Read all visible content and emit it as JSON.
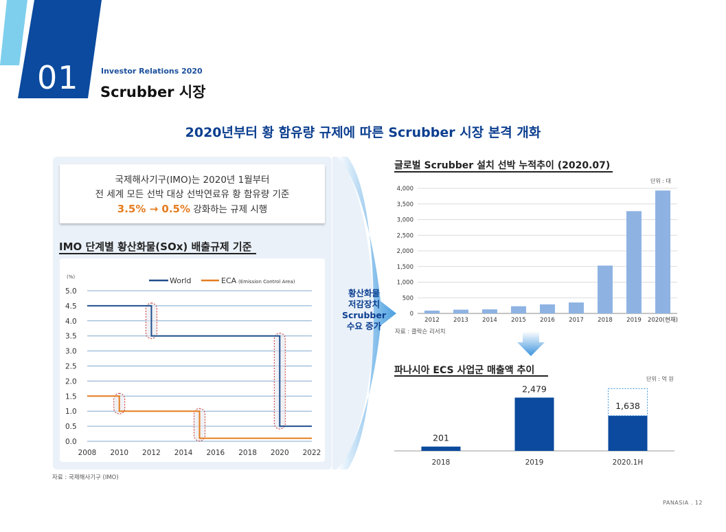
{
  "header": {
    "section_number": "01",
    "ir_label": "Investor Relations 2020",
    "section_title": "Scrubber 시장"
  },
  "headline": "2020년부터 황 함유량 규제에 따른 Scrubber 시장 본격 개화",
  "callout": {
    "line1": "국제해사기구(IMO)는 2020년 1월부터",
    "line2": "전 세계 모든 선박 대상 선박연료유 황 함유량 기준",
    "line3_highlight": "3.5% → 0.5%",
    "line3_rest": "강화하는 규제 시행"
  },
  "arrow_text": [
    "황산화물",
    "저감장치",
    "Scrubber",
    "수요 증가"
  ],
  "footer": "PANASIA . 12",
  "colors": {
    "navy": "#0b3e8f",
    "world": "#1f4e8c",
    "eca": "#e57c1f",
    "light_bar": "#8eb3e3",
    "panel": "#eaf1f9"
  },
  "chart_data": [
    {
      "type": "line",
      "title": "IMO 단계별 황산화물(SOx) 배출규제 기준",
      "unit": "(%)",
      "source": "자료 : 국제해사기구 (IMO)",
      "xlim": [
        2008,
        2022
      ],
      "ylim": [
        0,
        5
      ],
      "x_ticks": [
        "2008",
        "2010",
        "2012",
        "2014",
        "2016",
        "2018",
        "2020",
        "2022"
      ],
      "y_ticks": [
        "0.0",
        "0.5",
        "1.0",
        "1.5",
        "2.0",
        "2.5",
        "3.0",
        "3.5",
        "4.0",
        "4.5",
        "5.0"
      ],
      "legend_position": "top",
      "series": [
        {
          "name": "World",
          "color": "#1f4e8c",
          "points": [
            [
              2008,
              4.5
            ],
            [
              2012,
              4.5
            ],
            [
              2012,
              3.5
            ],
            [
              2020,
              3.5
            ],
            [
              2020,
              0.5
            ],
            [
              2022,
              0.5
            ]
          ]
        },
        {
          "name": "ECA",
          "legend_note": "(Emission Control Area)",
          "color": "#e57c1f",
          "points": [
            [
              2008,
              1.5
            ],
            [
              2010,
              1.5
            ],
            [
              2010,
              1.0
            ],
            [
              2015,
              1.0
            ],
            [
              2015,
              0.1
            ],
            [
              2022,
              0.1
            ]
          ]
        }
      ],
      "highlights": [
        [
          2012,
          3.5,
          4.5
        ],
        [
          2020,
          0.5,
          3.5
        ],
        [
          2010,
          1.0,
          1.5
        ],
        [
          2015,
          0.1,
          1.0
        ]
      ]
    },
    {
      "type": "bar",
      "title": "글로벌 Scrubber 설치 선박 누적추이 (2020.07)",
      "unit": "단위 : 대",
      "source": "자료 : 클락슨 리서치",
      "categories": [
        "2012",
        "2013",
        "2014",
        "2015",
        "2016",
        "2017",
        "2018",
        "2019",
        "2020(현재)"
      ],
      "values": [
        90,
        120,
        130,
        230,
        290,
        350,
        1530,
        3270,
        3930
      ],
      "ylim": [
        0,
        4000
      ],
      "y_ticks": [
        "0",
        "500",
        "1,000",
        "1,500",
        "2,000",
        "2,500",
        "3,000",
        "3,500",
        "4,000"
      ],
      "grid": true
    },
    {
      "type": "bar",
      "title": "파나시아 ECS 사업군 매출액 추이",
      "unit": "단위 : 억 원",
      "categories": [
        "2018",
        "2019",
        "2020.1H"
      ],
      "values": [
        201,
        2479,
        1638
      ],
      "labels": [
        "201",
        "2,479",
        "1,638"
      ],
      "ylim": [
        0,
        2750
      ]
    }
  ]
}
